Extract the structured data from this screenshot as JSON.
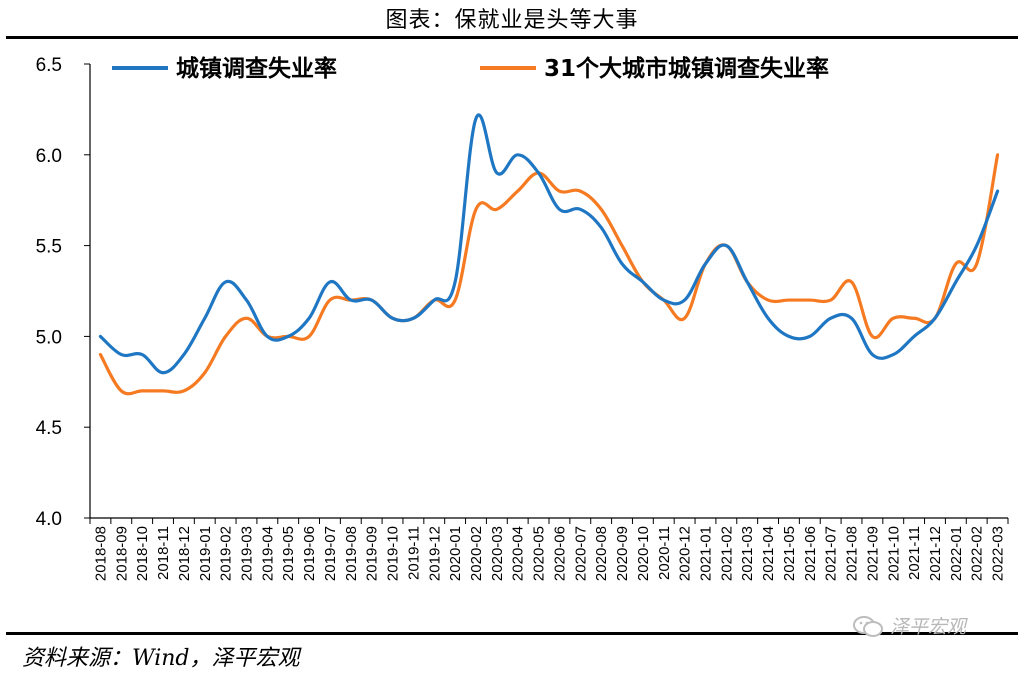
{
  "header": {
    "title": "图表：保就业是头等大事"
  },
  "footer": {
    "source": "资料来源：Wind，泽平宏观",
    "watermark": "泽平宏观"
  },
  "chart_data": {
    "type": "line",
    "title": "图表：保就业是头等大事",
    "xlabel": "",
    "ylabel": "",
    "ylim": [
      4.0,
      6.5
    ],
    "yticks": [
      "4.0",
      "4.5",
      "5.0",
      "5.5",
      "6.0",
      "6.5"
    ],
    "grid": false,
    "legend_position": "top",
    "categories": [
      "2018-08",
      "2018-09",
      "2018-10",
      "2018-11",
      "2018-12",
      "2019-01",
      "2019-02",
      "2019-03",
      "2019-04",
      "2019-05",
      "2019-06",
      "2019-07",
      "2019-08",
      "2019-09",
      "2019-10",
      "2019-11",
      "2019-12",
      "2020-01",
      "2020-02",
      "2020-03",
      "2020-04",
      "2020-05",
      "2020-06",
      "2020-07",
      "2020-08",
      "2020-09",
      "2020-10",
      "2020-11",
      "2020-12",
      "2021-01",
      "2021-02",
      "2021-03",
      "2021-04",
      "2021-05",
      "2021-06",
      "2021-07",
      "2021-08",
      "2021-09",
      "2021-10",
      "2021-11",
      "2021-12",
      "2022-01",
      "2022-02",
      "2022-03"
    ],
    "series": [
      {
        "name": "城镇调查失业率",
        "color": "#1f77c4",
        "values": [
          5.0,
          4.9,
          4.9,
          4.8,
          4.9,
          5.1,
          5.3,
          5.2,
          5.0,
          5.0,
          5.1,
          5.3,
          5.2,
          5.2,
          5.1,
          5.1,
          5.2,
          5.3,
          6.2,
          5.9,
          6.0,
          5.9,
          5.7,
          5.7,
          5.6,
          5.4,
          5.3,
          5.2,
          5.2,
          5.4,
          5.5,
          5.3,
          5.1,
          5.0,
          5.0,
          5.1,
          5.1,
          4.9,
          4.9,
          5.0,
          5.1,
          5.3,
          5.5,
          5.8
        ]
      },
      {
        "name": "31个大城市城镇调查失业率",
        "color": "#f57a21",
        "values": [
          4.9,
          4.7,
          4.7,
          4.7,
          4.7,
          4.8,
          5.0,
          5.1,
          5.0,
          5.0,
          5.0,
          5.2,
          5.2,
          5.2,
          5.1,
          5.1,
          5.2,
          5.2,
          5.7,
          5.7,
          5.8,
          5.9,
          5.8,
          5.8,
          5.7,
          5.5,
          5.3,
          5.2,
          5.1,
          5.4,
          5.5,
          5.3,
          5.2,
          5.2,
          5.2,
          5.2,
          5.3,
          5.0,
          5.1,
          5.1,
          5.1,
          5.4,
          5.4,
          6.0
        ]
      }
    ]
  }
}
